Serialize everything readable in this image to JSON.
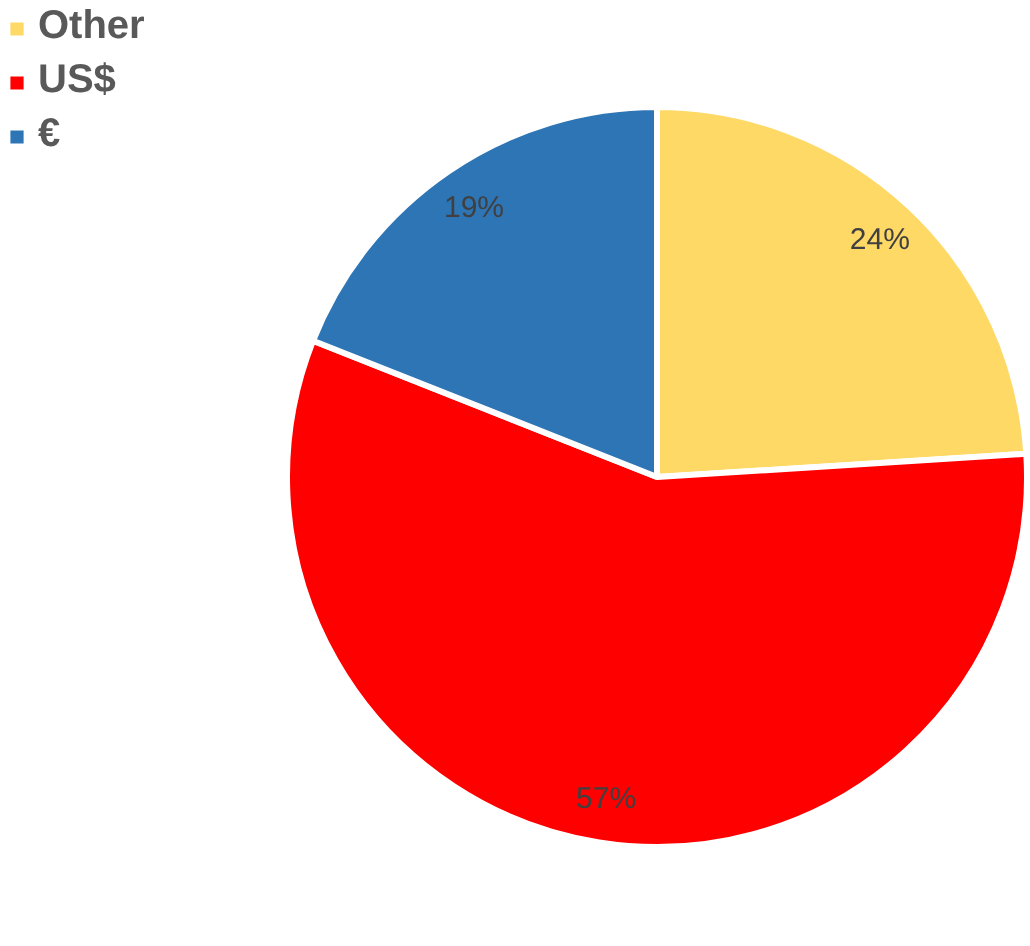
{
  "chart_data": {
    "type": "pie",
    "categories": [
      "Other",
      "US$",
      "€"
    ],
    "values": [
      24,
      57,
      19
    ],
    "colors": [
      "#ffd966",
      "#ff0000",
      "#2e75b6"
    ],
    "value_labels": [
      "24%",
      "57%",
      "19%"
    ],
    "legend": "top left"
  }
}
